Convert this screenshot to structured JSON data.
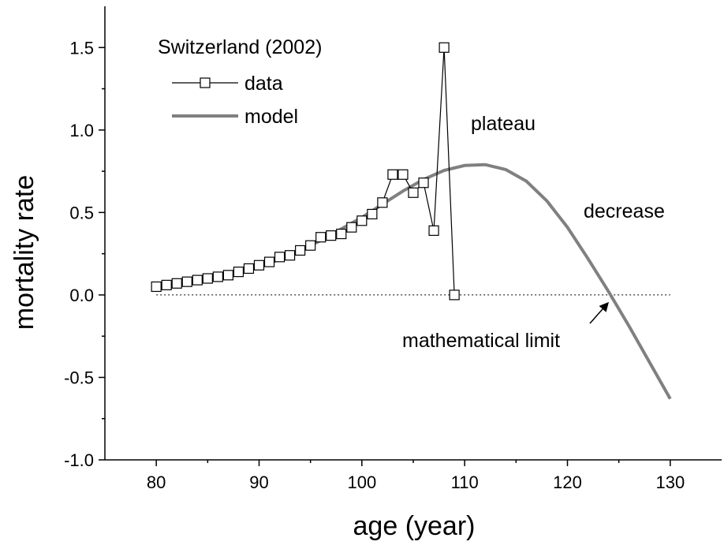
{
  "chart_data": {
    "type": "line",
    "xlabel": "age (year)",
    "ylabel": "mortality rate",
    "legend_title": "Switzerland (2002)",
    "legend": "upper left",
    "annotations": [
      "plateau",
      "decrease",
      "mathematical limit"
    ],
    "reference_line": 0,
    "xlim": [
      75,
      135
    ],
    "xticks": [
      80,
      90,
      100,
      110,
      120,
      130
    ],
    "ylim": [
      -1.0,
      1.75
    ],
    "yticks": [
      {
        "value": -1.0,
        "label": "-1.0"
      },
      {
        "value": -0.5,
        "label": "-0.5"
      },
      {
        "value": 0.0,
        "label": "0.0"
      },
      {
        "value": 0.5,
        "label": "0.5"
      },
      {
        "value": 1.0,
        "label": "1.0"
      },
      {
        "value": 1.5,
        "label": "1.5"
      }
    ],
    "series": [
      {
        "name": "data",
        "color": "#000000",
        "marker": "square",
        "x": [
          80,
          81,
          82,
          83,
          84,
          85,
          86,
          87,
          88,
          89,
          90,
          91,
          92,
          93,
          94,
          95,
          96,
          97,
          98,
          99,
          100,
          101,
          102,
          103,
          104,
          105,
          106,
          107,
          108,
          109
        ],
        "values": [
          0.05,
          0.06,
          0.07,
          0.08,
          0.09,
          0.1,
          0.11,
          0.12,
          0.14,
          0.16,
          0.18,
          0.2,
          0.23,
          0.24,
          0.27,
          0.3,
          0.35,
          0.36,
          0.37,
          0.41,
          0.45,
          0.49,
          0.56,
          0.73,
          0.73,
          0.62,
          0.68,
          0.39,
          1.5,
          0.0
        ]
      },
      {
        "name": "model",
        "color": "#808080",
        "x": [
          80,
          82,
          84,
          86,
          88,
          90,
          92,
          94,
          96,
          98,
          100,
          102,
          104,
          106,
          108,
          110,
          112,
          114,
          116,
          118,
          120,
          122,
          124,
          126,
          128,
          130
        ],
        "values": [
          0.045,
          0.06,
          0.08,
          0.105,
          0.135,
          0.17,
          0.215,
          0.27,
          0.33,
          0.4,
          0.47,
          0.55,
          0.63,
          0.7,
          0.755,
          0.785,
          0.79,
          0.76,
          0.69,
          0.57,
          0.41,
          0.22,
          0.02,
          -0.19,
          -0.41,
          -0.63
        ]
      }
    ]
  }
}
